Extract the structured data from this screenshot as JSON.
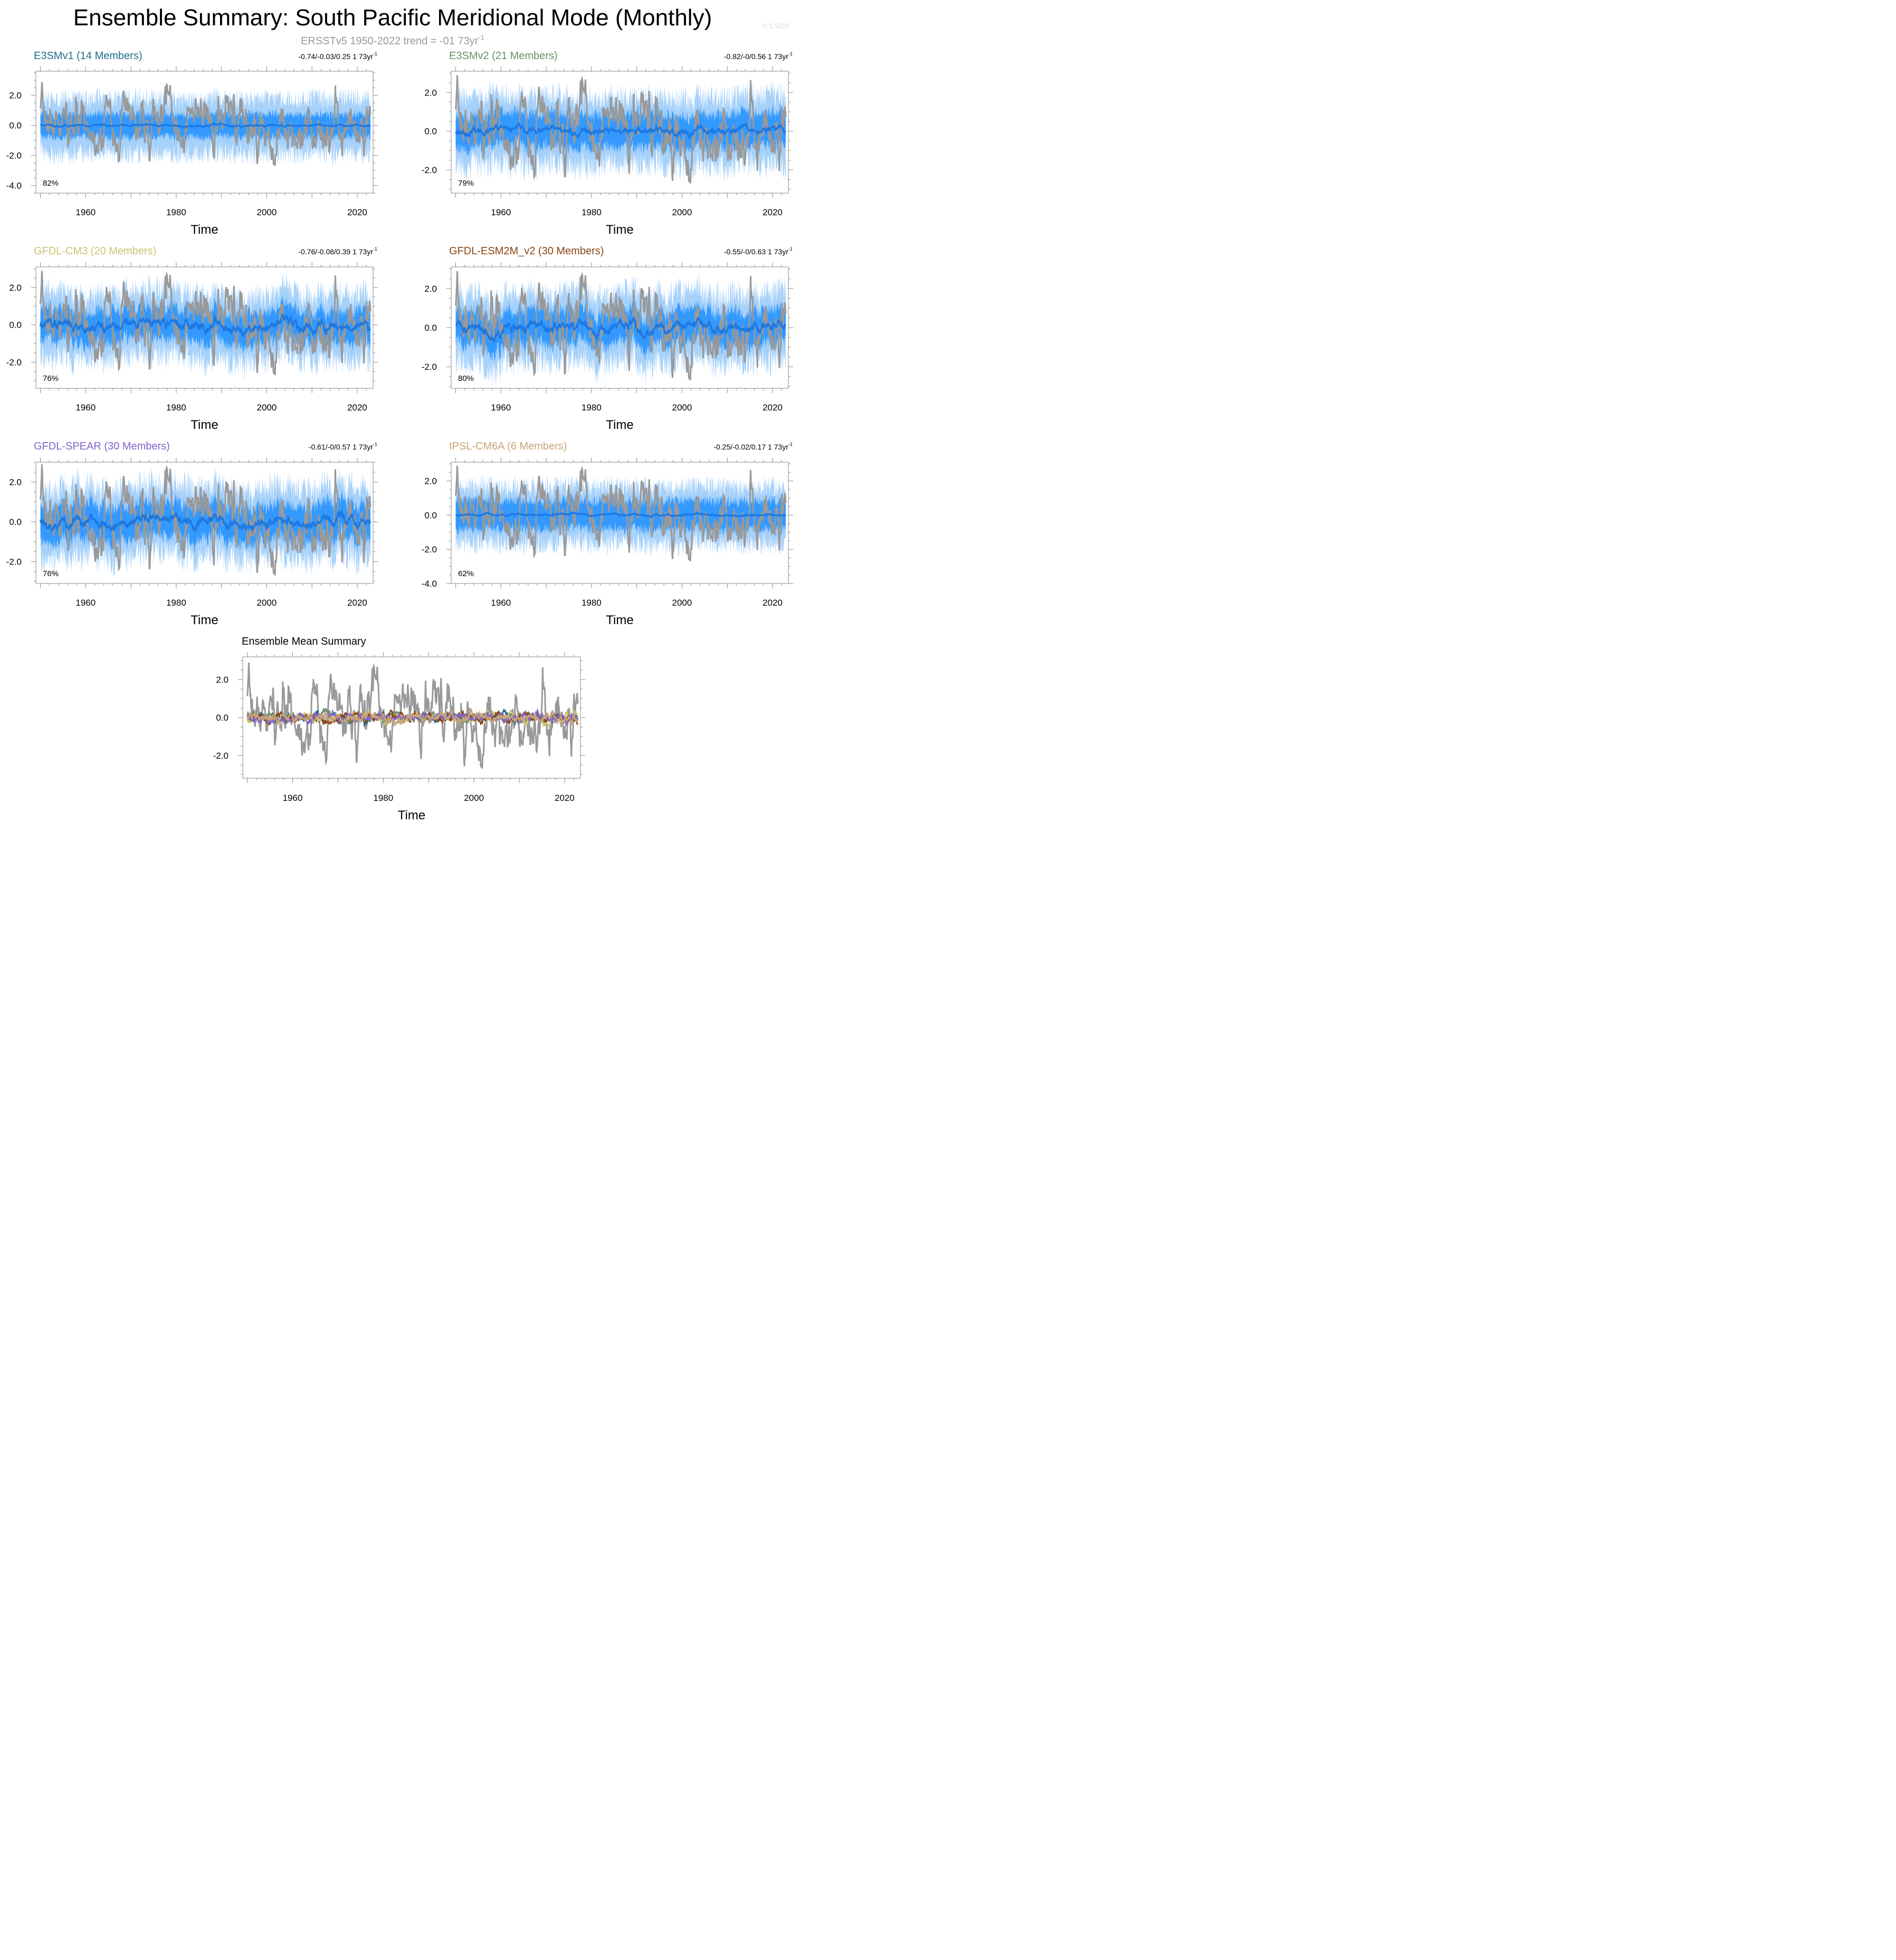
{
  "title": "Ensemble Summary: South Pacific Meridional Mode (Monthly)",
  "subtitle": {
    "text": "ERSSTv5 1950-2022 trend = -01 73yr",
    "sup": "-1"
  },
  "watermark": "© CVDP",
  "colors": {
    "obs": "#999999",
    "spread_outer": "#a6d1fa",
    "spread_inner": "#3399ff",
    "ensemble_mean": "#1e78e0",
    "axis": "#888888",
    "text": "#000000",
    "subtitle": "#999999"
  },
  "chart_data": [
    {
      "type": "line",
      "model": "E3SMv1",
      "members_label": "(14 Members)",
      "label_color": "#1f6e8c",
      "trend": "-0.74/-0.03/0.25 1 73yr",
      "trend_sup": "-1",
      "percent": "82%",
      "xlabel": "Time",
      "xticks": [
        "1960",
        "1980",
        "2000",
        "2020"
      ],
      "xlim": [
        1949,
        2023.5
      ],
      "yticks": [
        "2.0",
        "0.0",
        "-2.0",
        "-4.0"
      ],
      "ylim": [
        -4.5,
        3.6
      ],
      "obs_name": "ERSSTv5",
      "spread_outer": 1.85,
      "spread_inner": 1.0,
      "mean_amp": 0.05,
      "seed": 11
    },
    {
      "type": "line",
      "model": "E3SMv2",
      "members_label": "(21 Members)",
      "label_color": "#6b8e6b",
      "trend": "-0.82/-0/0.56 1 73yr",
      "trend_sup": "-1",
      "percent": "79%",
      "xlabel": "Time",
      "xticks": [
        "1960",
        "1980",
        "2000",
        "2020"
      ],
      "xlim": [
        1949,
        2023.5
      ],
      "yticks": [
        "2.0",
        "0.0",
        "-2.0"
      ],
      "ylim": [
        -3.2,
        3.1
      ],
      "obs_name": "ERSSTv5",
      "spread_outer": 1.8,
      "spread_inner": 1.1,
      "mean_amp": 0.12,
      "seed": 23
    },
    {
      "type": "line",
      "model": "GFDL-CM3",
      "members_label": "(20 Members)",
      "label_color": "#cdc373",
      "trend": "-0.76/-0.08/0.39 1 73yr",
      "trend_sup": "-1",
      "percent": "76%",
      "xlabel": "Time",
      "xticks": [
        "1960",
        "1980",
        "2000",
        "2020"
      ],
      "xlim": [
        1949,
        2023.5
      ],
      "yticks": [
        "2.0",
        "0.0",
        "-2.0"
      ],
      "ylim": [
        -3.4,
        3.1
      ],
      "obs_name": "ERSSTv5",
      "spread_outer": 1.8,
      "spread_inner": 1.1,
      "mean_amp": 0.2,
      "seed": 37
    },
    {
      "type": "line",
      "model": "GFDL-ESM2M_v2",
      "members_label": "(30 Members)",
      "label_color": "#8b4513",
      "trend": "-0.55/-0/0.63 1 73yr",
      "trend_sup": "-1",
      "percent": "80%",
      "xlabel": "Time",
      "xticks": [
        "1960",
        "1980",
        "2000",
        "2020"
      ],
      "xlim": [
        1949,
        2023.5
      ],
      "yticks": [
        "2.0",
        "0.0",
        "-2.0"
      ],
      "ylim": [
        -3.1,
        3.1
      ],
      "obs_name": "ERSSTv5",
      "spread_outer": 1.8,
      "spread_inner": 1.1,
      "mean_amp": 0.2,
      "seed": 41
    },
    {
      "type": "line",
      "model": "GFDL-SPEAR",
      "members_label": "(30 Members)",
      "label_color": "#8064cc",
      "trend": "-0.61/-0/0.57 1 73yr",
      "trend_sup": "-1",
      "percent": "76%",
      "xlabel": "Time",
      "xticks": [
        "1960",
        "1980",
        "2000",
        "2020"
      ],
      "xlim": [
        1949,
        2023.5
      ],
      "yticks": [
        "2.0",
        "0.0",
        "-2.0"
      ],
      "ylim": [
        -3.1,
        3.0
      ],
      "obs_name": "ERSSTv5",
      "spread_outer": 1.8,
      "spread_inner": 1.15,
      "mean_amp": 0.2,
      "seed": 53
    },
    {
      "type": "line",
      "model": "IPSL-CM6A",
      "members_label": "(6 Members)",
      "label_color": "#c8a47a",
      "trend": "-0.25/-0.02/0.17 1 73yr",
      "trend_sup": "-1",
      "percent": "62%",
      "xlabel": "Time",
      "xticks": [
        "1960",
        "1980",
        "2000",
        "2020"
      ],
      "xlim": [
        1949,
        2023.5
      ],
      "yticks": [
        "2.0",
        "0.0",
        "-2.0",
        "-4.0"
      ],
      "ylim": [
        -4.0,
        3.1
      ],
      "obs_name": "ERSSTv5",
      "spread_outer": 1.7,
      "spread_inner": 1.1,
      "mean_amp": 0.04,
      "seed": 67
    },
    {
      "type": "line",
      "title": "Ensemble Mean Summary",
      "xlabel": "Time",
      "xticks": [
        "1960",
        "1980",
        "2000",
        "2020"
      ],
      "xlim": [
        1949,
        2023.5
      ],
      "yticks": [
        "2.0",
        "0.0",
        "-2.0"
      ],
      "ylim": [
        -3.2,
        3.2
      ],
      "series": [
        {
          "name": "ERSSTv5",
          "color": "#999999"
        },
        {
          "name": "E3SMv1",
          "color": "#1f6e8c"
        },
        {
          "name": "E3SMv2",
          "color": "#6b8e6b"
        },
        {
          "name": "GFDL-CM3",
          "color": "#cdc373"
        },
        {
          "name": "GFDL-ESM2M_v2",
          "color": "#8b4513"
        },
        {
          "name": "GFDL-SPEAR",
          "color": "#8064cc"
        },
        {
          "name": "IPSL-CM6A",
          "color": "#c8a47a"
        }
      ]
    }
  ]
}
